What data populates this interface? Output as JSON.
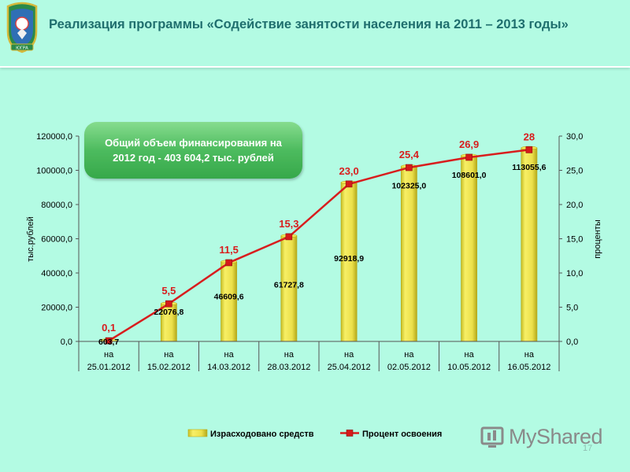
{
  "header": {
    "title": "Реализация программы «Содействие занятости населения на 2011 – 2013 годы»",
    "emblem_text": "ЮГРА"
  },
  "callout": {
    "line1": "Общий объем финансирования на",
    "line2": "2012 год - 403 604,2 тыс. рублей"
  },
  "footer": {
    "page_number": "17",
    "watermark": "MyShared"
  },
  "colors": {
    "background": "#b3fbe3",
    "title": "#1f6e6e",
    "bar_fill": "#f2ea58",
    "bar_edge": "#b8ac1c",
    "line": "#d81d1d",
    "marker": "#d51a1a",
    "callout": "#4cb860"
  },
  "chart_data": {
    "type": "bar+line",
    "categories": [
      [
        "на",
        "25.01.2012"
      ],
      [
        "на",
        "15.02.2012"
      ],
      [
        "на",
        "14.03.2012"
      ],
      [
        "на",
        "28.03.2012"
      ],
      [
        "на",
        "25.04.2012"
      ],
      [
        "на",
        "02.05.2012"
      ],
      [
        "на",
        "10.05.2012"
      ],
      [
        "на",
        "16.05.2012"
      ]
    ],
    "series": [
      {
        "name": "Израсходовано средств",
        "type": "bar",
        "axis": "left",
        "values": [
          603.7,
          22076.8,
          46609.6,
          61727.8,
          92918.9,
          102325.0,
          108601.0,
          113055.6
        ],
        "labels": [
          "603,7",
          "22076,8",
          "46609,6",
          "61727,8",
          "92918,9",
          "102325,0",
          "108601,0",
          "113055,6"
        ]
      },
      {
        "name": "Процент освоения",
        "type": "line",
        "axis": "right",
        "values": [
          0.1,
          5.5,
          11.5,
          15.3,
          23.0,
          25.4,
          26.9,
          28
        ],
        "labels": [
          "0,1",
          "5,5",
          "11,5",
          "15,3",
          "23,0",
          "25,4",
          "26,9",
          "28"
        ]
      }
    ],
    "y_left": {
      "label": "тыс.рублей",
      "min": 0,
      "max": 120000,
      "step": 20000,
      "ticks": [
        "0,0",
        "20000,0",
        "40000,0",
        "60000,0",
        "80000,0",
        "100000,0",
        "120000,0"
      ]
    },
    "y_right": {
      "label": "проценты",
      "min": 0,
      "max": 30,
      "step": 5,
      "ticks": [
        "0,0",
        "5,0",
        "10,0",
        "15,0",
        "20,0",
        "25,0",
        "30,0"
      ]
    },
    "legend": [
      "Израсходовано средств",
      "Процент освоения"
    ],
    "legend_position": "bottom",
    "grid": false
  }
}
